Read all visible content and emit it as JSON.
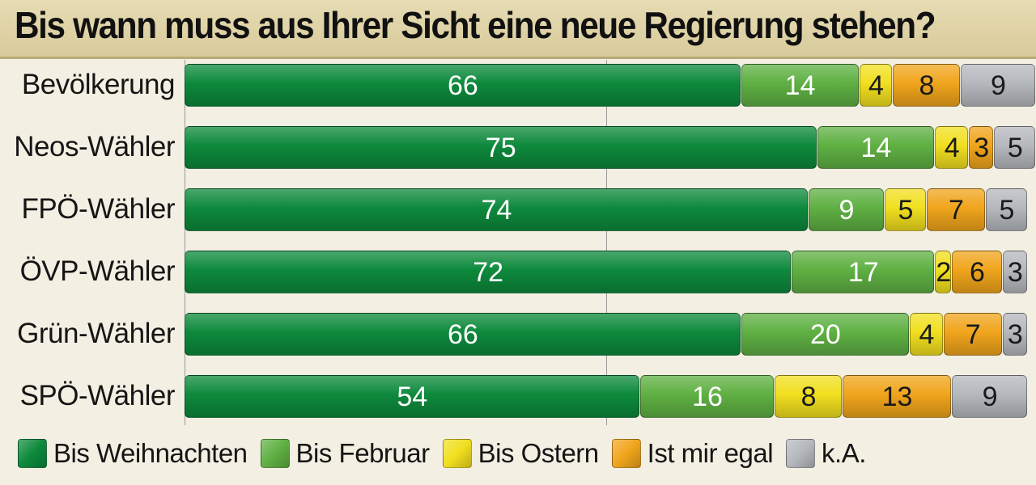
{
  "chart_data": {
    "type": "bar",
    "orientation": "horizontal",
    "stacked": true,
    "title": "Bis wann muss aus Ihrer Sicht eine neue Regierung stehen?",
    "xlabel": "",
    "ylabel": "",
    "xlim": [
      0,
      100
    ],
    "grid": true,
    "legend_position": "bottom",
    "categories": [
      "Bevölkerung",
      "Neos-Wähler",
      "FPÖ-Wähler",
      "ÖVP-Wähler",
      "Grün-Wähler",
      "SPÖ-Wähler"
    ],
    "series": [
      {
        "name": "Bis Weihnachten",
        "color": "#0d8a3c",
        "values": [
          66,
          75,
          74,
          72,
          66,
          54
        ]
      },
      {
        "name": "Bis Februar",
        "color": "#5fb043",
        "values": [
          14,
          14,
          9,
          17,
          20,
          16
        ]
      },
      {
        "name": "Bis Ostern",
        "color": "#f1df1f",
        "values": [
          4,
          4,
          5,
          2,
          4,
          8
        ]
      },
      {
        "name": "Ist mir egal",
        "color": "#f0a51c",
        "values": [
          8,
          3,
          7,
          6,
          7,
          13
        ]
      },
      {
        "name": "k.A.",
        "color": "#b5b8bd",
        "values": [
          9,
          5,
          5,
          3,
          3,
          9
        ]
      }
    ]
  }
}
